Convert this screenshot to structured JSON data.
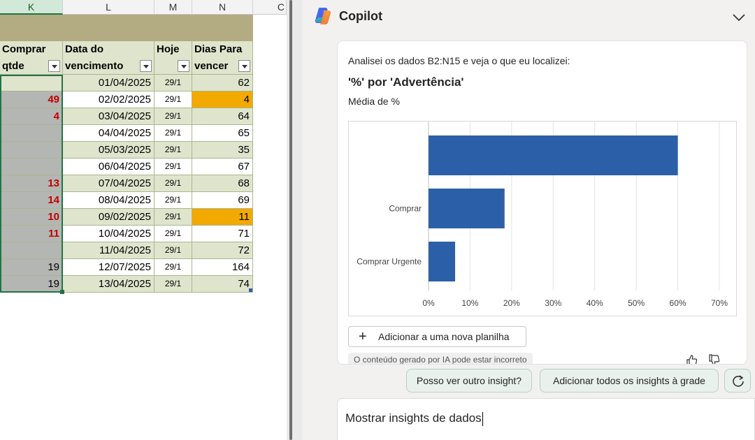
{
  "sheet": {
    "columns": [
      "K",
      "L",
      "M",
      "N",
      "C"
    ],
    "headers": {
      "k": [
        "Comprar",
        "qtde"
      ],
      "l": [
        "Data do",
        "vencimento"
      ],
      "m": [
        "Hoje"
      ],
      "n": [
        "Dias Para",
        "vencer"
      ]
    },
    "rows": [
      {
        "k": "",
        "l": "01/04/2025",
        "m": "29/1",
        "n": "62"
      },
      {
        "k": "49",
        "l": "02/02/2025",
        "m": "29/1",
        "n": "4"
      },
      {
        "k": "4",
        "l": "03/04/2025",
        "m": "29/1",
        "n": "64"
      },
      {
        "k": "",
        "l": "04/04/2025",
        "m": "29/1",
        "n": "65"
      },
      {
        "k": "",
        "l": "05/03/2025",
        "m": "29/1",
        "n": "35"
      },
      {
        "k": "",
        "l": "06/04/2025",
        "m": "29/1",
        "n": "67"
      },
      {
        "k": "13",
        "l": "07/04/2025",
        "m": "29/1",
        "n": "68"
      },
      {
        "k": "14",
        "l": "08/04/2025",
        "m": "29/1",
        "n": "69"
      },
      {
        "k": "10",
        "l": "09/02/2025",
        "m": "29/1",
        "n": "11"
      },
      {
        "k": "11",
        "l": "10/04/2025",
        "m": "29/1",
        "n": "71"
      },
      {
        "k": "",
        "l": "11/04/2025",
        "m": "29/1",
        "n": "72"
      },
      {
        "k": "19",
        "l": "12/07/2025",
        "m": "29/1",
        "n": "164"
      },
      {
        "k": "19",
        "l": "13/04/2025",
        "m": "29/1",
        "n": "74"
      }
    ],
    "colors": {
      "highlight": "#f2a900",
      "red_text": "#c00000",
      "selection": "#217346"
    }
  },
  "copilot": {
    "title": "Copilot",
    "intro": "Analisei os dados B2:N15 e veja o que eu localizei:",
    "card_title": "'%' por 'Advertência'",
    "card_subtitle": "Média de %",
    "add_sheet_label": "Adicionar a uma nova planilha",
    "disclaimer": "O conteúdo gerado por IA pode estar incorreto",
    "suggestions": [
      "Posso ver outro insight?",
      "Adicionar todos os insights à grade"
    ],
    "input_text": "Mostrar insights de dados",
    "icons": [
      "copilot-logo-icon",
      "chevron-down-icon",
      "plus-icon",
      "thumbs-up-icon",
      "thumbs-down-icon",
      "refresh-icon"
    ]
  },
  "chart_data": {
    "type": "bar",
    "orientation": "horizontal",
    "categories": [
      "",
      "Comprar",
      "Comprar Urgente"
    ],
    "values": [
      60,
      18.3,
      6.4
    ],
    "xlim": [
      0,
      70
    ],
    "xticks": [
      "0%",
      "10%",
      "20%",
      "30%",
      "40%",
      "50%",
      "60%",
      "70%"
    ],
    "grid": true,
    "bar_color": "#2b5fa8",
    "title": "",
    "xlabel": "",
    "ylabel": ""
  }
}
